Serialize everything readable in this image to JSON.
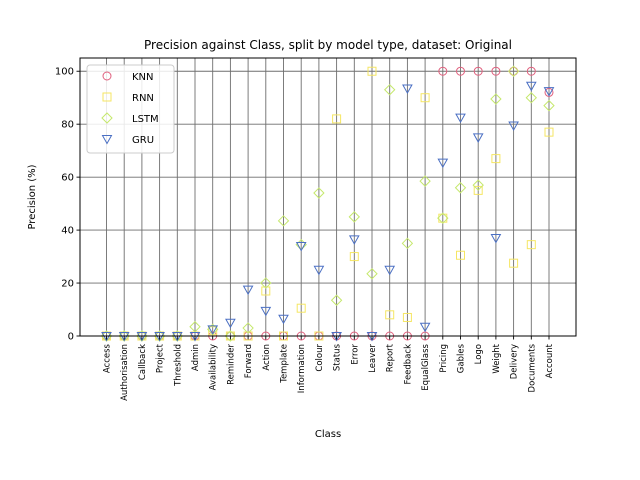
{
  "chart_data": {
    "type": "scatter",
    "title": "Precision against Class, split by model type, dataset: Original",
    "xlabel": "Class",
    "ylabel": "Precision (%)",
    "ylim": [
      0,
      105
    ],
    "yticks": [
      0,
      20,
      40,
      60,
      80,
      100
    ],
    "grid": true,
    "legend_position": "top-left",
    "categories": [
      "Access",
      "Authorisation",
      "Callback",
      "Project",
      "Threshold",
      "Admin",
      "Availability",
      "Reminder",
      "Forward",
      "Action",
      "Template",
      "Information",
      "Colour",
      "Status",
      "Error",
      "Leaver",
      "Report",
      "Feedback",
      "EqualGlass",
      "Pricing",
      "Gables",
      "Logo",
      "Weight",
      "Delivery",
      "Documents",
      "Account"
    ],
    "series": [
      {
        "name": "KNN",
        "marker": "circle",
        "color": "#e0607e",
        "values": [
          0,
          0,
          0,
          0,
          0,
          0,
          0,
          0,
          0,
          0,
          0,
          0,
          0,
          0,
          0,
          0,
          0,
          0,
          0,
          100,
          100,
          100,
          100,
          100,
          100,
          92
        ]
      },
      {
        "name": "RNN",
        "marker": "square",
        "color": "#f5e663",
        "values": [
          0,
          0,
          0,
          0,
          0,
          0,
          2,
          0,
          0,
          17,
          0,
          10.5,
          0,
          82,
          30,
          100,
          8,
          7,
          90,
          44.5,
          30.5,
          55,
          67,
          27.5,
          34.5,
          77
        ]
      },
      {
        "name": "LSTM",
        "marker": "diamond",
        "color": "#c5e86c",
        "values": [
          0,
          0,
          0,
          0,
          0,
          3.5,
          2.5,
          0,
          3,
          20,
          43.5,
          34.5,
          54,
          13.5,
          45,
          23.5,
          93,
          35,
          58.5,
          44.5,
          56,
          57,
          89.5,
          100,
          90,
          87
        ]
      },
      {
        "name": "GRU",
        "marker": "triangle-down",
        "color": "#4a6fc3",
        "values": [
          0,
          0,
          0,
          0,
          0,
          0,
          2.5,
          5,
          17.5,
          9.5,
          6.5,
          34,
          25,
          0,
          36.5,
          0,
          25,
          93.5,
          3.5,
          65.5,
          82.5,
          75,
          37,
          79.5,
          94.5,
          92.5
        ]
      }
    ]
  }
}
